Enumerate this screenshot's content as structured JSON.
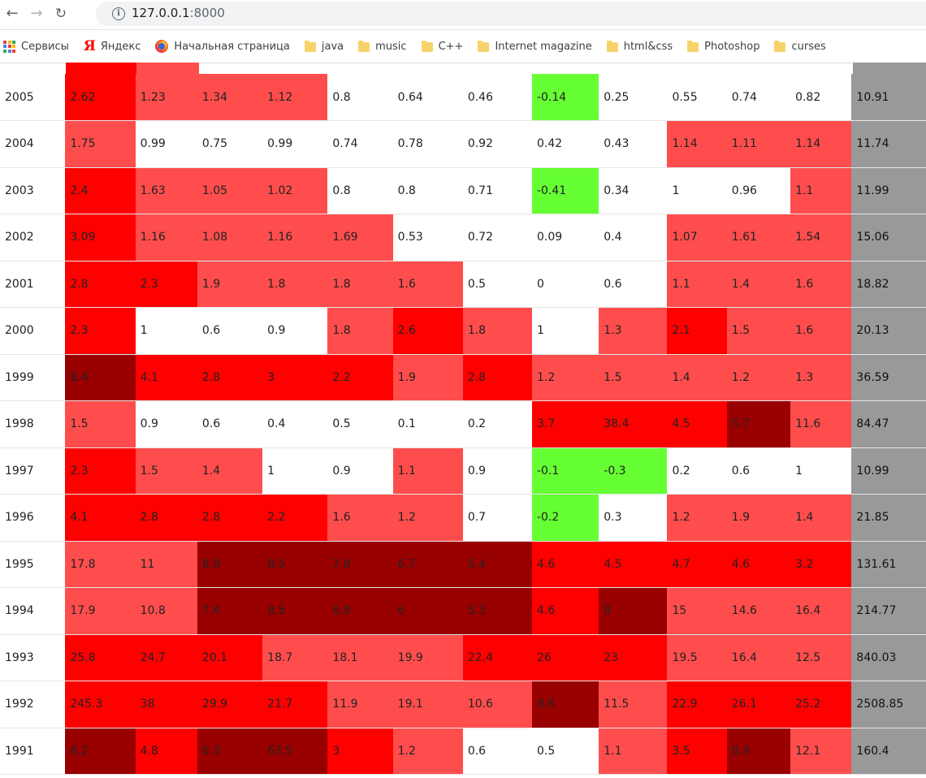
{
  "browser": {
    "url_host": "127.0.0.1",
    "url_port": ":8000",
    "bookmarks": [
      {
        "label": "Сервисы",
        "icon": "apps-grid-icon"
      },
      {
        "label": "Яндекс",
        "icon": "yandex-icon"
      },
      {
        "label": "Начальная страница",
        "icon": "firefox-icon"
      },
      {
        "label": "java",
        "icon": "folder-icon"
      },
      {
        "label": "music",
        "icon": "folder-icon"
      },
      {
        "label": "C++",
        "icon": "folder-icon"
      },
      {
        "label": "Internet magazine",
        "icon": "folder-icon"
      },
      {
        "label": "html&css",
        "icon": "folder-icon"
      },
      {
        "label": "Photoshop",
        "icon": "folder-icon"
      },
      {
        "label": "curses",
        "icon": "folder-icon"
      }
    ]
  },
  "colors": {
    "none": "#ffffff",
    "low": "#ff4d4d",
    "mid": "#ff0000",
    "high": "#990000",
    "negative": "#66ff33",
    "total": "#999999"
  },
  "table": {
    "rows": [
      {
        "year": "2005",
        "cells": [
          [
            "2.62",
            "mid"
          ],
          [
            "1.23",
            "low"
          ],
          [
            "1.34",
            "low"
          ],
          [
            "1.12",
            "low"
          ],
          [
            "0.8",
            "none"
          ],
          [
            "0.64",
            "none"
          ],
          [
            "0.46",
            "none"
          ],
          [
            "-0.14",
            "neg"
          ],
          [
            "0.25",
            "none"
          ],
          [
            "0.55",
            "none"
          ],
          [
            "0.74",
            "none"
          ],
          [
            "0.82",
            "none"
          ]
        ],
        "total": "10.91"
      },
      {
        "year": "2004",
        "cells": [
          [
            "1.75",
            "low"
          ],
          [
            "0.99",
            "none"
          ],
          [
            "0.75",
            "none"
          ],
          [
            "0.99",
            "none"
          ],
          [
            "0.74",
            "none"
          ],
          [
            "0.78",
            "none"
          ],
          [
            "0.92",
            "none"
          ],
          [
            "0.42",
            "none"
          ],
          [
            "0.43",
            "none"
          ],
          [
            "1.14",
            "low"
          ],
          [
            "1.11",
            "low"
          ],
          [
            "1.14",
            "low"
          ]
        ],
        "total": "11.74"
      },
      {
        "year": "2003",
        "cells": [
          [
            "2.4",
            "mid"
          ],
          [
            "1.63",
            "low"
          ],
          [
            "1.05",
            "low"
          ],
          [
            "1.02",
            "low"
          ],
          [
            "0.8",
            "none"
          ],
          [
            "0.8",
            "none"
          ],
          [
            "0.71",
            "none"
          ],
          [
            "-0.41",
            "neg"
          ],
          [
            "0.34",
            "none"
          ],
          [
            "1",
            "none"
          ],
          [
            "0.96",
            "none"
          ],
          [
            "1.1",
            "low"
          ]
        ],
        "total": "11.99"
      },
      {
        "year": "2002",
        "cells": [
          [
            "3.09",
            "mid"
          ],
          [
            "1.16",
            "low"
          ],
          [
            "1.08",
            "low"
          ],
          [
            "1.16",
            "low"
          ],
          [
            "1.69",
            "low"
          ],
          [
            "0.53",
            "none"
          ],
          [
            "0.72",
            "none"
          ],
          [
            "0.09",
            "none"
          ],
          [
            "0.4",
            "none"
          ],
          [
            "1.07",
            "low"
          ],
          [
            "1.61",
            "low"
          ],
          [
            "1.54",
            "low"
          ]
        ],
        "total": "15.06"
      },
      {
        "year": "2001",
        "cells": [
          [
            "2.8",
            "mid"
          ],
          [
            "2.3",
            "mid"
          ],
          [
            "1.9",
            "low"
          ],
          [
            "1.8",
            "low"
          ],
          [
            "1.8",
            "low"
          ],
          [
            "1.6",
            "low"
          ],
          [
            "0.5",
            "none"
          ],
          [
            "0",
            "none"
          ],
          [
            "0.6",
            "none"
          ],
          [
            "1.1",
            "low"
          ],
          [
            "1.4",
            "low"
          ],
          [
            "1.6",
            "low"
          ]
        ],
        "total": "18.82"
      },
      {
        "year": "2000",
        "cells": [
          [
            "2.3",
            "mid"
          ],
          [
            "1",
            "none"
          ],
          [
            "0.6",
            "none"
          ],
          [
            "0.9",
            "none"
          ],
          [
            "1.8",
            "low"
          ],
          [
            "2.6",
            "mid"
          ],
          [
            "1.8",
            "low"
          ],
          [
            "1",
            "none"
          ],
          [
            "1.3",
            "low"
          ],
          [
            "2.1",
            "mid"
          ],
          [
            "1.5",
            "low"
          ],
          [
            "1.6",
            "low"
          ]
        ],
        "total": "20.13"
      },
      {
        "year": "1999",
        "cells": [
          [
            "8.4",
            "high"
          ],
          [
            "4.1",
            "mid"
          ],
          [
            "2.8",
            "mid"
          ],
          [
            "3",
            "mid"
          ],
          [
            "2.2",
            "mid"
          ],
          [
            "1.9",
            "low"
          ],
          [
            "2.8",
            "mid"
          ],
          [
            "1.2",
            "low"
          ],
          [
            "1.5",
            "low"
          ],
          [
            "1.4",
            "low"
          ],
          [
            "1.2",
            "low"
          ],
          [
            "1.3",
            "low"
          ]
        ],
        "total": "36.59"
      },
      {
        "year": "1998",
        "cells": [
          [
            "1.5",
            "low"
          ],
          [
            "0.9",
            "none"
          ],
          [
            "0.6",
            "none"
          ],
          [
            "0.4",
            "none"
          ],
          [
            "0.5",
            "none"
          ],
          [
            "0.1",
            "none"
          ],
          [
            "0.2",
            "none"
          ],
          [
            "3.7",
            "mid"
          ],
          [
            "38.4",
            "mid"
          ],
          [
            "4.5",
            "mid"
          ],
          [
            "5.7",
            "high"
          ],
          [
            "11.6",
            "low"
          ]
        ],
        "total": "84.47"
      },
      {
        "year": "1997",
        "cells": [
          [
            "2.3",
            "mid"
          ],
          [
            "1.5",
            "low"
          ],
          [
            "1.4",
            "low"
          ],
          [
            "1",
            "none"
          ],
          [
            "0.9",
            "none"
          ],
          [
            "1.1",
            "low"
          ],
          [
            "0.9",
            "none"
          ],
          [
            "-0.1",
            "neg"
          ],
          [
            "-0.3",
            "neg"
          ],
          [
            "0.2",
            "none"
          ],
          [
            "0.6",
            "none"
          ],
          [
            "1",
            "none"
          ]
        ],
        "total": "10.99"
      },
      {
        "year": "1996",
        "cells": [
          [
            "4.1",
            "mid"
          ],
          [
            "2.8",
            "mid"
          ],
          [
            "2.8",
            "mid"
          ],
          [
            "2.2",
            "mid"
          ],
          [
            "1.6",
            "low"
          ],
          [
            "1.2",
            "low"
          ],
          [
            "0.7",
            "none"
          ],
          [
            "-0.2",
            "neg"
          ],
          [
            "0.3",
            "none"
          ],
          [
            "1.2",
            "low"
          ],
          [
            "1.9",
            "low"
          ],
          [
            "1.4",
            "low"
          ]
        ],
        "total": "21.85"
      },
      {
        "year": "1995",
        "cells": [
          [
            "17.8",
            "low"
          ],
          [
            "11",
            "low"
          ],
          [
            "8.9",
            "high"
          ],
          [
            "8.5",
            "high"
          ],
          [
            "7.9",
            "high"
          ],
          [
            "6.7",
            "high"
          ],
          [
            "5.4",
            "high"
          ],
          [
            "4.6",
            "mid"
          ],
          [
            "4.5",
            "mid"
          ],
          [
            "4.7",
            "mid"
          ],
          [
            "4.6",
            "mid"
          ],
          [
            "3.2",
            "mid"
          ]
        ],
        "total": "131.61"
      },
      {
        "year": "1994",
        "cells": [
          [
            "17.9",
            "low"
          ],
          [
            "10.8",
            "low"
          ],
          [
            "7.4",
            "high"
          ],
          [
            "8.5",
            "high"
          ],
          [
            "6.9",
            "high"
          ],
          [
            "6",
            "high"
          ],
          [
            "5.3",
            "high"
          ],
          [
            "4.6",
            "mid"
          ],
          [
            "8",
            "high"
          ],
          [
            "15",
            "low"
          ],
          [
            "14.6",
            "low"
          ],
          [
            "16.4",
            "low"
          ]
        ],
        "total": "214.77"
      },
      {
        "year": "1993",
        "cells": [
          [
            "25.8",
            "mid"
          ],
          [
            "24.7",
            "mid"
          ],
          [
            "20.1",
            "mid"
          ],
          [
            "18.7",
            "low"
          ],
          [
            "18.1",
            "low"
          ],
          [
            "19.9",
            "low"
          ],
          [
            "22.4",
            "mid"
          ],
          [
            "26",
            "mid"
          ],
          [
            "23",
            "mid"
          ],
          [
            "19.5",
            "low"
          ],
          [
            "16.4",
            "low"
          ],
          [
            "12.5",
            "low"
          ]
        ],
        "total": "840.03"
      },
      {
        "year": "1992",
        "cells": [
          [
            "245.3",
            "mid"
          ],
          [
            "38",
            "mid"
          ],
          [
            "29.9",
            "mid"
          ],
          [
            "21.7",
            "mid"
          ],
          [
            "11.9",
            "low"
          ],
          [
            "19.1",
            "low"
          ],
          [
            "10.6",
            "low"
          ],
          [
            "8.6",
            "high"
          ],
          [
            "11.5",
            "low"
          ],
          [
            "22.9",
            "mid"
          ],
          [
            "26.1",
            "mid"
          ],
          [
            "25.2",
            "mid"
          ]
        ],
        "total": "2508.85"
      },
      {
        "year": "1991",
        "cells": [
          [
            "6.2",
            "high"
          ],
          [
            "4.8",
            "mid"
          ],
          [
            "6.3",
            "high"
          ],
          [
            "63.5",
            "high"
          ],
          [
            "3",
            "mid"
          ],
          [
            "1.2",
            "low"
          ],
          [
            "0.6",
            "none"
          ],
          [
            "0.5",
            "none"
          ],
          [
            "1.1",
            "low"
          ],
          [
            "3.5",
            "mid"
          ],
          [
            "8.9",
            "high"
          ],
          [
            "12.1",
            "low"
          ]
        ],
        "total": "160.4"
      }
    ]
  }
}
